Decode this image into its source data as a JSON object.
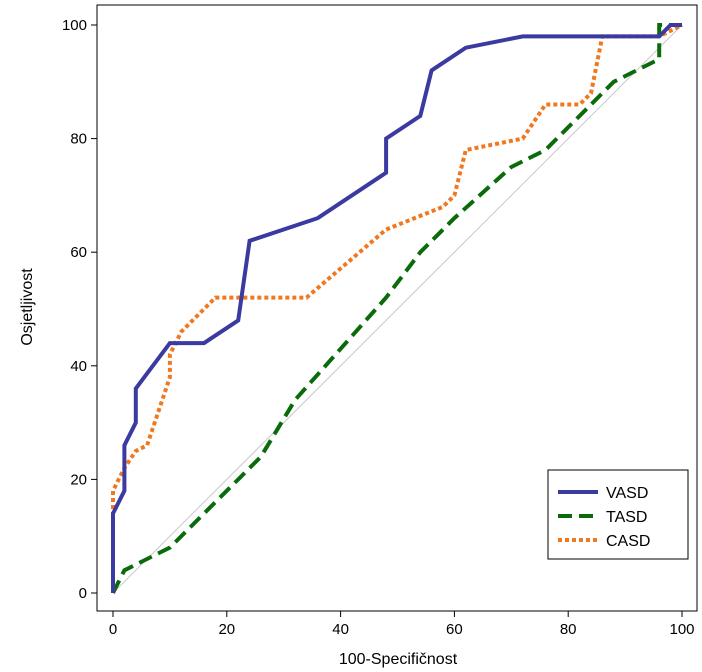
{
  "chart_data": {
    "type": "line",
    "xlabel": "100-Specifičnost",
    "ylabel": "Osjetljivost",
    "xlim": [
      0,
      100
    ],
    "ylim": [
      0,
      100
    ],
    "xticks": [
      0,
      20,
      40,
      60,
      80,
      100
    ],
    "yticks": [
      0,
      20,
      40,
      60,
      80,
      100
    ],
    "grid": false,
    "legend_position": "bottom-right",
    "reference_line": {
      "x": [
        0,
        100
      ],
      "y": [
        0,
        100
      ],
      "color": "#c8c8c8"
    },
    "series": [
      {
        "name": "VASD",
        "color": "#3a3aa0",
        "style": "solid",
        "x": [
          0,
          0,
          2,
          2,
          2,
          4,
          4,
          10,
          16,
          22,
          24,
          36,
          48,
          48,
          54,
          56,
          62,
          72,
          96,
          98,
          100
        ],
        "y": [
          0,
          14,
          18,
          22,
          26,
          30,
          36,
          44,
          44,
          48,
          62,
          66,
          74,
          80,
          84,
          92,
          96,
          98,
          98,
          100,
          100
        ]
      },
      {
        "name": "TASD",
        "color": "#0b6b0b",
        "style": "dashed",
        "x": [
          0,
          2,
          4,
          10,
          16,
          22,
          26,
          32,
          40,
          48,
          54,
          60,
          70,
          76,
          82,
          88,
          96,
          96,
          100
        ],
        "y": [
          0,
          4,
          5,
          8,
          14,
          20,
          24,
          34,
          43,
          52,
          60,
          66,
          75,
          78,
          84,
          90,
          94,
          100,
          100
        ]
      },
      {
        "name": "CASD",
        "color": "#f07820",
        "style": "dotted",
        "x": [
          0,
          0,
          2,
          4,
          6,
          10,
          10,
          12,
          18,
          34,
          48,
          58,
          60,
          62,
          72,
          76,
          82,
          84,
          86,
          96,
          100
        ],
        "y": [
          0,
          18,
          22,
          25,
          26,
          38,
          42,
          46,
          52,
          52,
          64,
          68,
          70,
          78,
          80,
          86,
          86,
          88,
          98,
          98,
          100
        ]
      }
    ]
  }
}
